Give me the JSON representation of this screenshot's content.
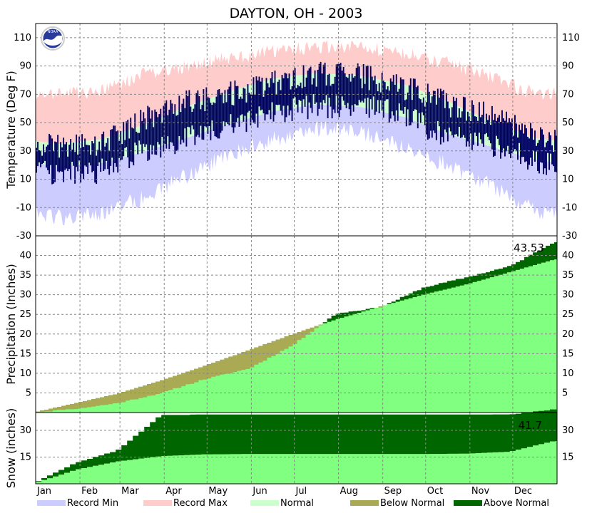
{
  "chart_data": {
    "type": "area",
    "title": "DAYTON, OH - 2003",
    "months": [
      "Jan",
      "Feb",
      "Mar",
      "Apr",
      "May",
      "Jun",
      "Jul",
      "Aug",
      "Sep",
      "Oct",
      "Nov",
      "Dec"
    ],
    "legend": [
      {
        "label": "Record Min",
        "color": "#ccccff"
      },
      {
        "label": "Record Max",
        "color": "#ffcccc"
      },
      {
        "label": "Normal",
        "color": "#ccffcc"
      },
      {
        "label": "Below Normal",
        "color": "#aaaa55"
      },
      {
        "label": "Above Normal",
        "color": "#006600"
      }
    ],
    "colors": {
      "record_min": "#ccccff",
      "record_max": "#ffcccc",
      "normal": "#ccffcc",
      "actual_temp": "#000066",
      "normal_precip": "#80ff80",
      "below_normal": "#aaaa55",
      "above_normal": "#006600",
      "grid": "#888888"
    },
    "panels": [
      {
        "name": "temperature",
        "ylabel": "Temperature (Deg F)",
        "ylim": [
          -30,
          120
        ],
        "yticks": [
          -30,
          -10,
          10,
          30,
          50,
          70,
          90,
          110
        ],
        "monthly_mean": {
          "record_min": [
            -17,
            -15,
            -3,
            12,
            28,
            38,
            46,
            44,
            32,
            20,
            5,
            -12
          ],
          "record_max": [
            70,
            72,
            84,
            90,
            96,
            100,
            104,
            103,
            99,
            92,
            82,
            70
          ],
          "normal_low": [
            19,
            21,
            29,
            39,
            49,
            58,
            63,
            61,
            54,
            42,
            33,
            24
          ],
          "normal_high": [
            35,
            38,
            48,
            61,
            72,
            81,
            85,
            83,
            77,
            65,
            51,
            39
          ],
          "actual_low": [
            14,
            15,
            30,
            38,
            47,
            57,
            62,
            62,
            55,
            40,
            33,
            24
          ],
          "actual_high": [
            33,
            34,
            52,
            64,
            70,
            78,
            84,
            83,
            75,
            63,
            55,
            40
          ]
        }
      },
      {
        "name": "precipitation",
        "ylabel": "Precipitation (Inches)",
        "ylim": [
          0,
          45
        ],
        "yticks": [
          5,
          10,
          15,
          20,
          25,
          30,
          35,
          40
        ],
        "annotation": "43.53",
        "cumulative_normal_month_end": [
          2.5,
          4.8,
          8.2,
          11.9,
          15.9,
          19.9,
          23.7,
          27.0,
          30.0,
          32.7,
          35.8,
          39.0
        ],
        "cumulative_actual_month_end": [
          1.0,
          2.4,
          5.0,
          8.5,
          11.2,
          17.0,
          25.2,
          26.8,
          31.8,
          34.5,
          37.3,
          43.53
        ]
      },
      {
        "name": "snow",
        "ylabel": "Snow (inches)",
        "ylim": [
          0,
          40
        ],
        "yticks": [
          15,
          30
        ],
        "annotation": "41.7",
        "cumulative_normal_month_end": [
          8.0,
          12.5,
          15.5,
          16.5,
          16.7,
          16.7,
          16.7,
          16.7,
          16.7,
          16.9,
          18.0,
          24.0
        ],
        "cumulative_actual_month_end": [
          12.0,
          18.5,
          38.5,
          38.8,
          38.8,
          38.8,
          38.8,
          38.8,
          38.8,
          38.8,
          38.8,
          41.7
        ]
      }
    ]
  }
}
